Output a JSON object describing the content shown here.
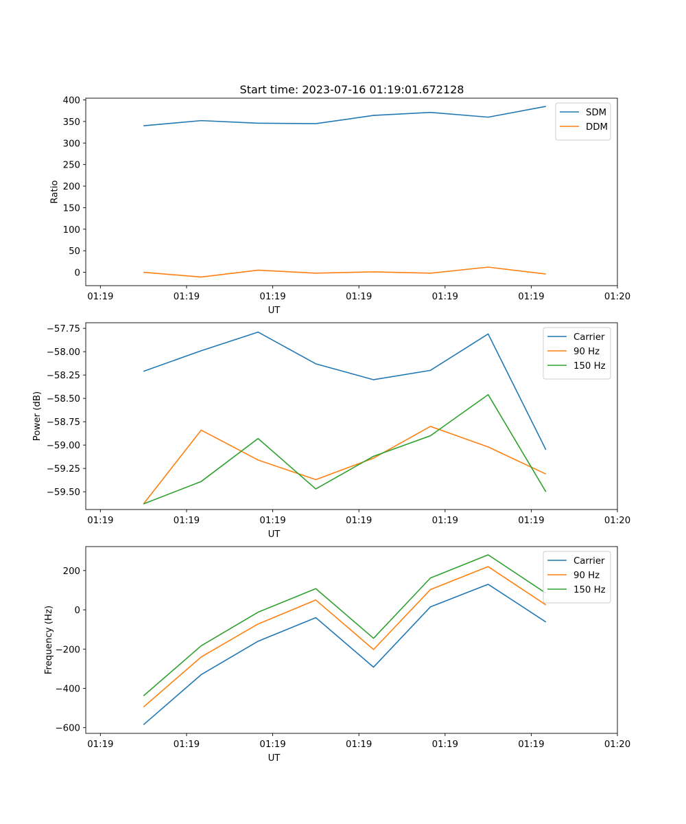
{
  "figure": {
    "title": "Start time: 2023-07-16 01:19:01.672128"
  },
  "chart_data": [
    {
      "type": "line",
      "title": "Start time: 2023-07-16 01:19:01.672128",
      "xlabel": "UT",
      "ylabel": "Ratio",
      "x": [
        0.5,
        1.17,
        1.83,
        2.5,
        3.17,
        3.83,
        4.5,
        5.17
      ],
      "xlim": [
        -0.17,
        6.0
      ],
      "xticks": [
        0,
        1,
        2,
        3,
        4,
        5,
        6
      ],
      "xticklabels": [
        "01:19",
        "01:19",
        "01:19",
        "01:19",
        "01:19",
        "01:19",
        "01:20"
      ],
      "ylim": [
        -31,
        404
      ],
      "yticks": [
        0,
        50,
        100,
        150,
        200,
        250,
        300,
        350,
        400
      ],
      "yticklabels": [
        "0",
        "50",
        "100",
        "150",
        "200",
        "250",
        "300",
        "350",
        "400"
      ],
      "legend": "top-right",
      "series": [
        {
          "name": "SDM",
          "color": "#1f77b4",
          "values": [
            340,
            352,
            346,
            345,
            364,
            371,
            360,
            385
          ]
        },
        {
          "name": "DDM",
          "color": "#ff7f0e",
          "values": [
            0,
            -11,
            5,
            -2,
            1,
            -2,
            12,
            -4
          ]
        }
      ]
    },
    {
      "type": "line",
      "title": "",
      "xlabel": "UT",
      "ylabel": "Power (dB)",
      "x": [
        0.5,
        1.17,
        1.83,
        2.5,
        3.17,
        3.83,
        4.5,
        5.17
      ],
      "xlim": [
        -0.17,
        6.0
      ],
      "xticks": [
        0,
        1,
        2,
        3,
        4,
        5,
        6
      ],
      "xticklabels": [
        "01:19",
        "01:19",
        "01:19",
        "01:19",
        "01:19",
        "01:19",
        "01:20"
      ],
      "ylim": [
        -59.69,
        -57.69
      ],
      "yticks": [
        -59.5,
        -59.25,
        -59.0,
        -58.75,
        -58.5,
        -58.25,
        -58.0,
        -57.75
      ],
      "yticklabels": [
        "−59.50",
        "−59.25",
        "−59.00",
        "−58.75",
        "−58.50",
        "−58.25",
        "−58.00",
        "−57.75"
      ],
      "legend": "top-right",
      "series": [
        {
          "name": "Carrier",
          "color": "#1f77b4",
          "values": [
            -58.21,
            -57.99,
            -57.79,
            -58.13,
            -58.3,
            -58.2,
            -57.81,
            -59.05
          ]
        },
        {
          "name": "90 Hz",
          "color": "#ff7f0e",
          "values": [
            -59.63,
            -58.84,
            -59.16,
            -59.37,
            -59.14,
            -58.8,
            -59.02,
            -59.31
          ]
        },
        {
          "name": "150 Hz",
          "color": "#2ca02c",
          "values": [
            -59.63,
            -59.39,
            -58.93,
            -59.47,
            -59.12,
            -58.9,
            -58.46,
            -59.5
          ]
        }
      ]
    },
    {
      "type": "line",
      "title": "",
      "xlabel": "UT",
      "ylabel": "Frequency (Hz)",
      "x": [
        0.5,
        1.17,
        1.83,
        2.5,
        3.17,
        3.83,
        4.5,
        5.17
      ],
      "xlim": [
        -0.17,
        6.0
      ],
      "xticks": [
        0,
        1,
        2,
        3,
        4,
        5,
        6
      ],
      "xticklabels": [
        "01:19",
        "01:19",
        "01:19",
        "01:19",
        "01:19",
        "01:19",
        "01:20"
      ],
      "ylim": [
        -629,
        322
      ],
      "yticks": [
        -600,
        -400,
        -200,
        0,
        200
      ],
      "yticklabels": [
        "−600",
        "−400",
        "−200",
        "0",
        "200"
      ],
      "legend": "top-right",
      "series": [
        {
          "name": "Carrier",
          "color": "#1f77b4",
          "values": [
            -585,
            -330,
            -160,
            -40,
            -292,
            15,
            130,
            -62
          ]
        },
        {
          "name": "90 Hz",
          "color": "#ff7f0e",
          "values": [
            -495,
            -240,
            -72,
            50,
            -202,
            103,
            220,
            25
          ]
        },
        {
          "name": "150 Hz",
          "color": "#2ca02c",
          "values": [
            -438,
            -183,
            -12,
            108,
            -145,
            162,
            280,
            85
          ]
        }
      ]
    }
  ]
}
